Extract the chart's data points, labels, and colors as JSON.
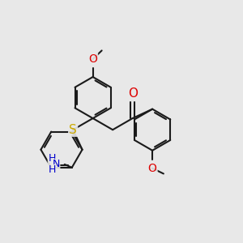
{
  "bg": "#e8e8e8",
  "bond_color": "#1a1a1a",
  "O_color": "#dd0000",
  "S_color": "#ccaa00",
  "N_color": "#0000cc",
  "bond_lw": 1.5,
  "dbl_lw": 1.5,
  "ring_r": 0.65,
  "figsize": [
    3.0,
    3.0
  ],
  "dpi": 100,
  "xlim": [
    0.3,
    7.8
  ],
  "ylim": [
    1.2,
    8.8
  ]
}
